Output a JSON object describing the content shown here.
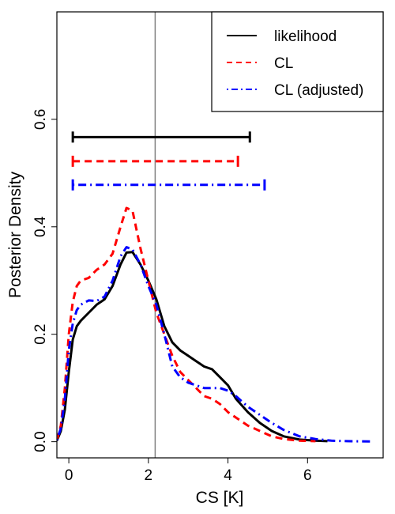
{
  "chart_data": {
    "type": "line",
    "xlabel": "CS [K]",
    "ylabel": "Posterior Density",
    "xlim": [
      -0.3,
      7.9
    ],
    "ylim": [
      -0.03,
      0.8
    ],
    "xticks": [
      0,
      2,
      4,
      6
    ],
    "xtick_labels": [
      "0",
      "2",
      "4",
      "6"
    ],
    "yticks": [
      0.0,
      0.2,
      0.4,
      0.6
    ],
    "ytick_labels": [
      "0.0",
      "0.2",
      "0.4",
      "0.6"
    ],
    "reference_line": {
      "x": 2.17,
      "color": "#808080"
    },
    "legend": {
      "position": "top-right"
    },
    "series": [
      {
        "name": "likelihood",
        "color": "#000000",
        "dash": "solid",
        "interval": {
          "y": 0.567,
          "lo": 0.1,
          "hi": 4.55
        },
        "points": [
          [
            -0.3,
            0.002
          ],
          [
            -0.2,
            0.02
          ],
          [
            -0.1,
            0.06
          ],
          [
            0.0,
            0.13
          ],
          [
            0.1,
            0.19
          ],
          [
            0.2,
            0.215
          ],
          [
            0.3,
            0.225
          ],
          [
            0.5,
            0.24
          ],
          [
            0.7,
            0.255
          ],
          [
            0.9,
            0.265
          ],
          [
            1.1,
            0.29
          ],
          [
            1.3,
            0.33
          ],
          [
            1.45,
            0.352
          ],
          [
            1.6,
            0.353
          ],
          [
            1.8,
            0.33
          ],
          [
            2.0,
            0.3
          ],
          [
            2.2,
            0.265
          ],
          [
            2.4,
            0.215
          ],
          [
            2.6,
            0.185
          ],
          [
            2.8,
            0.17
          ],
          [
            3.0,
            0.16
          ],
          [
            3.2,
            0.15
          ],
          [
            3.4,
            0.14
          ],
          [
            3.6,
            0.135
          ],
          [
            3.8,
            0.12
          ],
          [
            4.0,
            0.105
          ],
          [
            4.2,
            0.08
          ],
          [
            4.5,
            0.055
          ],
          [
            4.8,
            0.035
          ],
          [
            5.1,
            0.02
          ],
          [
            5.4,
            0.01
          ],
          [
            5.8,
            0.004
          ],
          [
            6.2,
            0.002
          ],
          [
            6.5,
            0.001
          ]
        ]
      },
      {
        "name": "CL",
        "color": "#ff0000",
        "dash": "dashed",
        "interval": {
          "y": 0.522,
          "lo": 0.1,
          "hi": 4.25
        },
        "points": [
          [
            -0.3,
            0.003
          ],
          [
            -0.2,
            0.03
          ],
          [
            -0.1,
            0.1
          ],
          [
            0.0,
            0.2
          ],
          [
            0.1,
            0.26
          ],
          [
            0.2,
            0.29
          ],
          [
            0.3,
            0.3
          ],
          [
            0.5,
            0.305
          ],
          [
            0.7,
            0.32
          ],
          [
            0.9,
            0.33
          ],
          [
            1.1,
            0.35
          ],
          [
            1.3,
            0.4
          ],
          [
            1.45,
            0.435
          ],
          [
            1.6,
            0.43
          ],
          [
            1.8,
            0.36
          ],
          [
            2.0,
            0.3
          ],
          [
            2.2,
            0.24
          ],
          [
            2.4,
            0.2
          ],
          [
            2.6,
            0.16
          ],
          [
            2.8,
            0.13
          ],
          [
            3.0,
            0.115
          ],
          [
            3.2,
            0.1
          ],
          [
            3.4,
            0.085
          ],
          [
            3.6,
            0.08
          ],
          [
            3.8,
            0.07
          ],
          [
            4.0,
            0.055
          ],
          [
            4.2,
            0.045
          ],
          [
            4.5,
            0.03
          ],
          [
            4.8,
            0.02
          ],
          [
            5.1,
            0.01
          ],
          [
            5.4,
            0.005
          ],
          [
            5.8,
            0.002
          ],
          [
            6.2,
            0.001
          ]
        ]
      },
      {
        "name": "CL (adjusted)",
        "color": "#0000ff",
        "dash": "dotdash",
        "interval": {
          "y": 0.478,
          "lo": 0.1,
          "hi": 4.92
        },
        "points": [
          [
            -0.3,
            0.003
          ],
          [
            -0.2,
            0.025
          ],
          [
            -0.1,
            0.08
          ],
          [
            0.0,
            0.17
          ],
          [
            0.1,
            0.22
          ],
          [
            0.2,
            0.245
          ],
          [
            0.3,
            0.255
          ],
          [
            0.5,
            0.263
          ],
          [
            0.7,
            0.262
          ],
          [
            0.9,
            0.27
          ],
          [
            1.1,
            0.3
          ],
          [
            1.3,
            0.345
          ],
          [
            1.45,
            0.362
          ],
          [
            1.6,
            0.358
          ],
          [
            1.8,
            0.33
          ],
          [
            2.0,
            0.29
          ],
          [
            2.2,
            0.255
          ],
          [
            2.4,
            0.2
          ],
          [
            2.6,
            0.14
          ],
          [
            2.8,
            0.12
          ],
          [
            3.0,
            0.11
          ],
          [
            3.2,
            0.105
          ],
          [
            3.4,
            0.1
          ],
          [
            3.6,
            0.1
          ],
          [
            3.8,
            0.1
          ],
          [
            4.0,
            0.095
          ],
          [
            4.2,
            0.085
          ],
          [
            4.5,
            0.065
          ],
          [
            4.8,
            0.05
          ],
          [
            5.1,
            0.035
          ],
          [
            5.4,
            0.022
          ],
          [
            5.8,
            0.01
          ],
          [
            6.2,
            0.005
          ],
          [
            6.6,
            0.002
          ],
          [
            7.0,
            0.001
          ],
          [
            7.6,
            0.0005
          ]
        ]
      }
    ]
  }
}
